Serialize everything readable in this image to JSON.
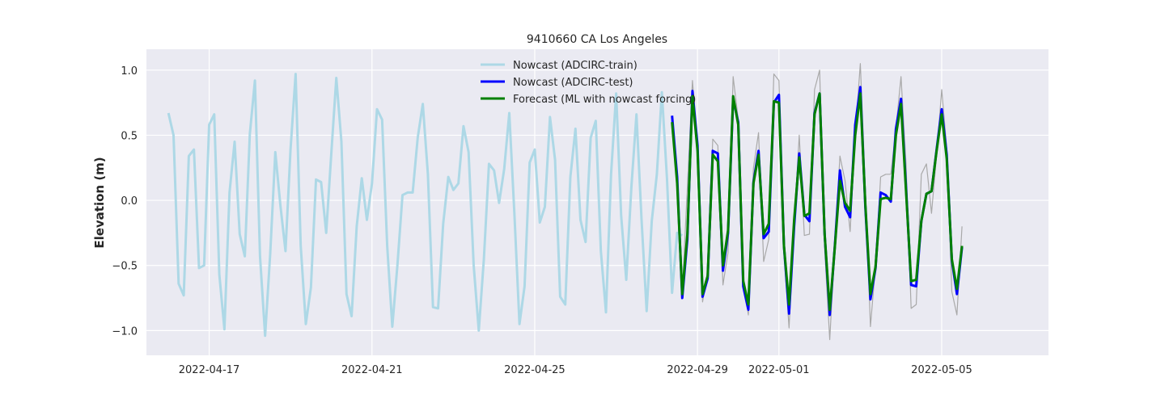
{
  "chart_data": {
    "type": "line",
    "title": "9410660 CA Los Angeles",
    "xlabel": "",
    "ylabel": "Elevation (m)",
    "x_axis_type": "date",
    "xlim": [
      "2022-04-15T11:00",
      "2022-05-07T15:00"
    ],
    "ylim": [
      -1.19,
      1.16
    ],
    "xticks": [
      "2022-04-17",
      "2022-04-21",
      "2022-04-25",
      "2022-04-29",
      "2022-05-01",
      "2022-05-05"
    ],
    "yticks": [
      -1.0,
      -0.5,
      0.0,
      0.5,
      1.0
    ],
    "ytick_labels": [
      "−1.0",
      "−0.5",
      "0.0",
      "0.5",
      "1.0"
    ],
    "grid": true,
    "legend_position": "upper center",
    "colors": {
      "background": "#eaeaf2",
      "grid": "#ffffff",
      "train": "#add8e6",
      "test": "#0000ff",
      "forecast": "#008000",
      "observed": "#a9a9a9"
    },
    "series": [
      {
        "name": "Nowcast (ADCIRC-train)",
        "color": "#add8e6",
        "start": "2022-04-16T00:00",
        "step_hours": 3,
        "values": [
          0.67,
          0.5,
          -0.64,
          -0.73,
          0.34,
          0.39,
          -0.52,
          -0.5,
          0.58,
          0.66,
          -0.57,
          -0.99,
          0.06,
          0.45,
          -0.26,
          -0.43,
          0.51,
          0.92,
          -0.43,
          -1.04,
          -0.41,
          0.37,
          -0.04,
          -0.39,
          0.39,
          0.97,
          -0.35,
          -0.95,
          -0.67,
          0.16,
          0.14,
          -0.25,
          0.35,
          0.94,
          0.45,
          -0.72,
          -0.89,
          -0.2,
          0.17,
          -0.15,
          0.13,
          0.7,
          0.62,
          -0.35,
          -0.97,
          -0.5,
          0.04,
          0.06,
          0.06,
          0.48,
          0.74,
          0.2,
          -0.82,
          -0.83,
          -0.18,
          0.18,
          0.08,
          0.13,
          0.57,
          0.37,
          -0.5,
          -1.0,
          -0.45,
          0.28,
          0.23,
          -0.02,
          0.24,
          0.67,
          -0.1,
          -0.95,
          -0.66,
          0.29,
          0.39,
          -0.17,
          -0.05,
          0.64,
          0.31,
          -0.74,
          -0.8,
          0.18,
          0.55,
          -0.15,
          -0.32,
          0.48,
          0.61,
          -0.39,
          -0.86,
          0.2,
          0.82,
          -0.12,
          -0.61,
          0.1,
          0.66,
          -0.15,
          -0.85,
          -0.16,
          0.2,
          0.83,
          0.17,
          -0.71,
          -0.25,
          -0.27
        ]
      },
      {
        "name": "",
        "color": "#a9a9a9",
        "start": "2022-04-28T09:00",
        "step_hours": 3,
        "values": [
          0.62,
          0.2,
          -0.72,
          0.1,
          0.92,
          0.4,
          -0.78,
          -0.55,
          0.47,
          0.42,
          -0.65,
          -0.4,
          0.95,
          0.62,
          -0.6,
          -0.88,
          0.25,
          0.52,
          -0.47,
          -0.3,
          0.97,
          0.92,
          -0.4,
          -0.98,
          -0.2,
          0.5,
          -0.27,
          -0.26,
          0.85,
          1.0,
          -0.37,
          -1.07,
          -0.35,
          0.34,
          0.15,
          -0.24,
          0.5,
          1.05,
          0.1,
          -0.97,
          -0.5,
          0.18,
          0.2,
          0.2,
          0.55,
          0.95,
          0.28,
          -0.83,
          -0.8,
          0.2,
          0.28,
          -0.1,
          0.35,
          0.85,
          0.4,
          -0.7,
          -0.88,
          -0.2
        ]
      },
      {
        "name": "Nowcast (ADCIRC-test)",
        "color": "#0000ff",
        "start": "2022-04-28T09:00",
        "step_hours": 3,
        "values": [
          0.65,
          0.18,
          -0.75,
          -0.3,
          0.84,
          0.42,
          -0.74,
          -0.6,
          0.38,
          0.36,
          -0.54,
          -0.25,
          0.78,
          0.6,
          -0.66,
          -0.84,
          0.14,
          0.38,
          -0.29,
          -0.24,
          0.75,
          0.81,
          -0.35,
          -0.87,
          -0.2,
          0.36,
          -0.11,
          -0.16,
          0.67,
          0.82,
          -0.26,
          -0.88,
          -0.35,
          0.23,
          -0.05,
          -0.13,
          0.58,
          0.87,
          -0.05,
          -0.76,
          -0.52,
          0.06,
          0.04,
          -0.01,
          0.55,
          0.78,
          0.1,
          -0.65,
          -0.66,
          -0.16,
          0.05,
          0.07,
          0.39,
          0.7,
          0.35,
          -0.46,
          -0.72,
          -0.36
        ]
      },
      {
        "name": "Forecast (ML with nowcast forcing)",
        "color": "#008000",
        "start": "2022-04-28T09:00",
        "step_hours": 3,
        "values": [
          0.6,
          0.13,
          -0.72,
          -0.26,
          0.8,
          0.38,
          -0.72,
          -0.58,
          0.35,
          0.3,
          -0.5,
          -0.23,
          0.8,
          0.58,
          -0.62,
          -0.8,
          0.13,
          0.35,
          -0.26,
          -0.18,
          0.76,
          0.75,
          -0.35,
          -0.8,
          -0.15,
          0.33,
          -0.12,
          -0.1,
          0.66,
          0.82,
          -0.26,
          -0.84,
          -0.36,
          0.15,
          -0.02,
          -0.08,
          0.5,
          0.82,
          -0.03,
          -0.72,
          -0.51,
          0.01,
          0.02,
          0.01,
          0.5,
          0.74,
          0.07,
          -0.62,
          -0.61,
          -0.16,
          0.05,
          0.07,
          0.38,
          0.66,
          0.32,
          -0.45,
          -0.68,
          -0.35
        ]
      }
    ]
  }
}
